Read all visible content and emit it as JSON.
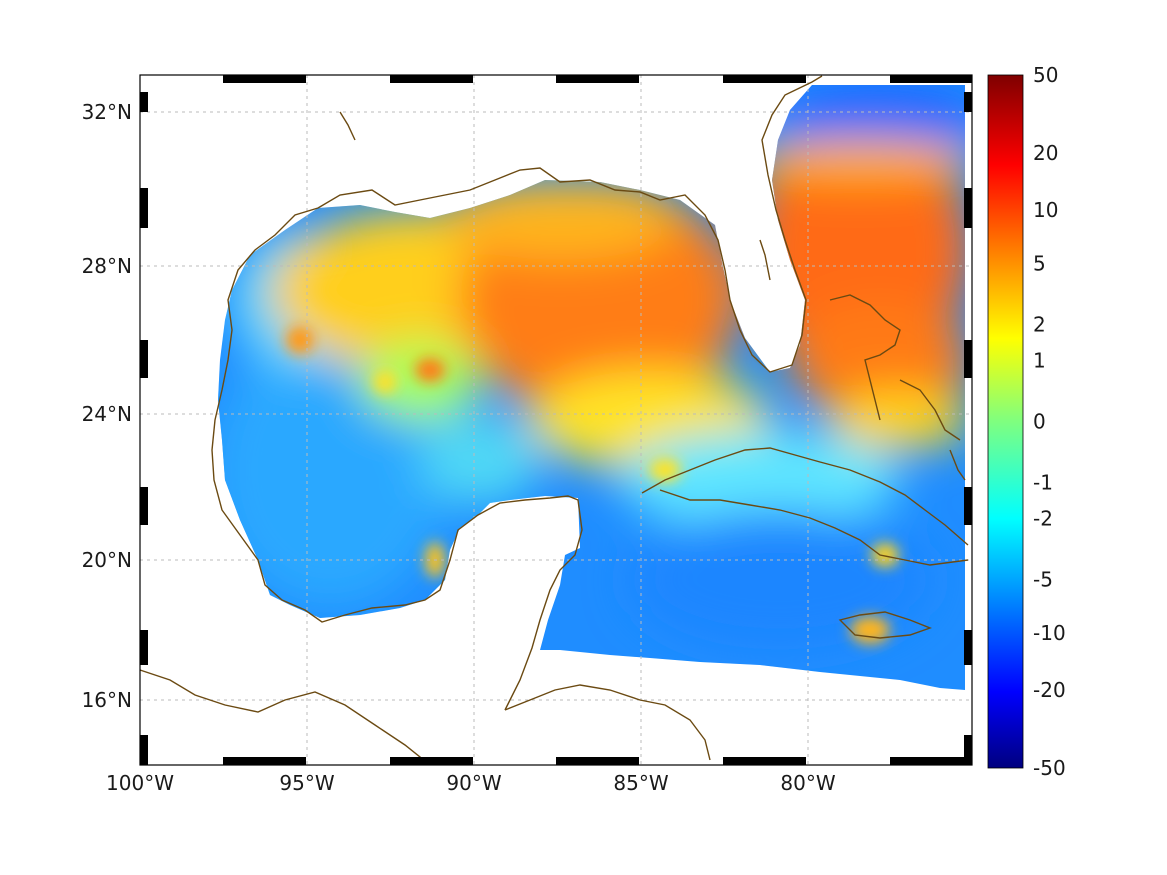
{
  "map": {
    "lon_range": [
      -100,
      -75
    ],
    "lat_range": [
      14.5,
      32.5
    ],
    "lon_tick_labels": [
      {
        "lon": -100,
        "text": "100°W"
      },
      {
        "lon": -95,
        "text": "95°W"
      },
      {
        "lon": -90,
        "text": "90°W"
      },
      {
        "lon": -85,
        "text": "85°W"
      },
      {
        "lon": -80,
        "text": "80°W"
      }
    ],
    "lat_tick_labels": [
      {
        "lat": 32,
        "text": "32°N"
      },
      {
        "lat": 28,
        "text": "28°N"
      },
      {
        "lat": 24,
        "text": "24°N"
      },
      {
        "lat": 20,
        "text": "20°N"
      },
      {
        "lat": 16,
        "text": "16°N"
      }
    ],
    "grid": true,
    "coastline_color": "#6b4a12",
    "colormap": "jet"
  },
  "colorbar": {
    "scale": "symmetric-log",
    "labels": [
      "50",
      "20",
      "10",
      "5",
      "2",
      "1",
      "0",
      "-1",
      "-2",
      "-5",
      "-10",
      "-20",
      "-50"
    ],
    "values": [
      50,
      20,
      10,
      5,
      2,
      1,
      0,
      -1,
      -2,
      -5,
      -10,
      -20,
      -50
    ]
  }
}
